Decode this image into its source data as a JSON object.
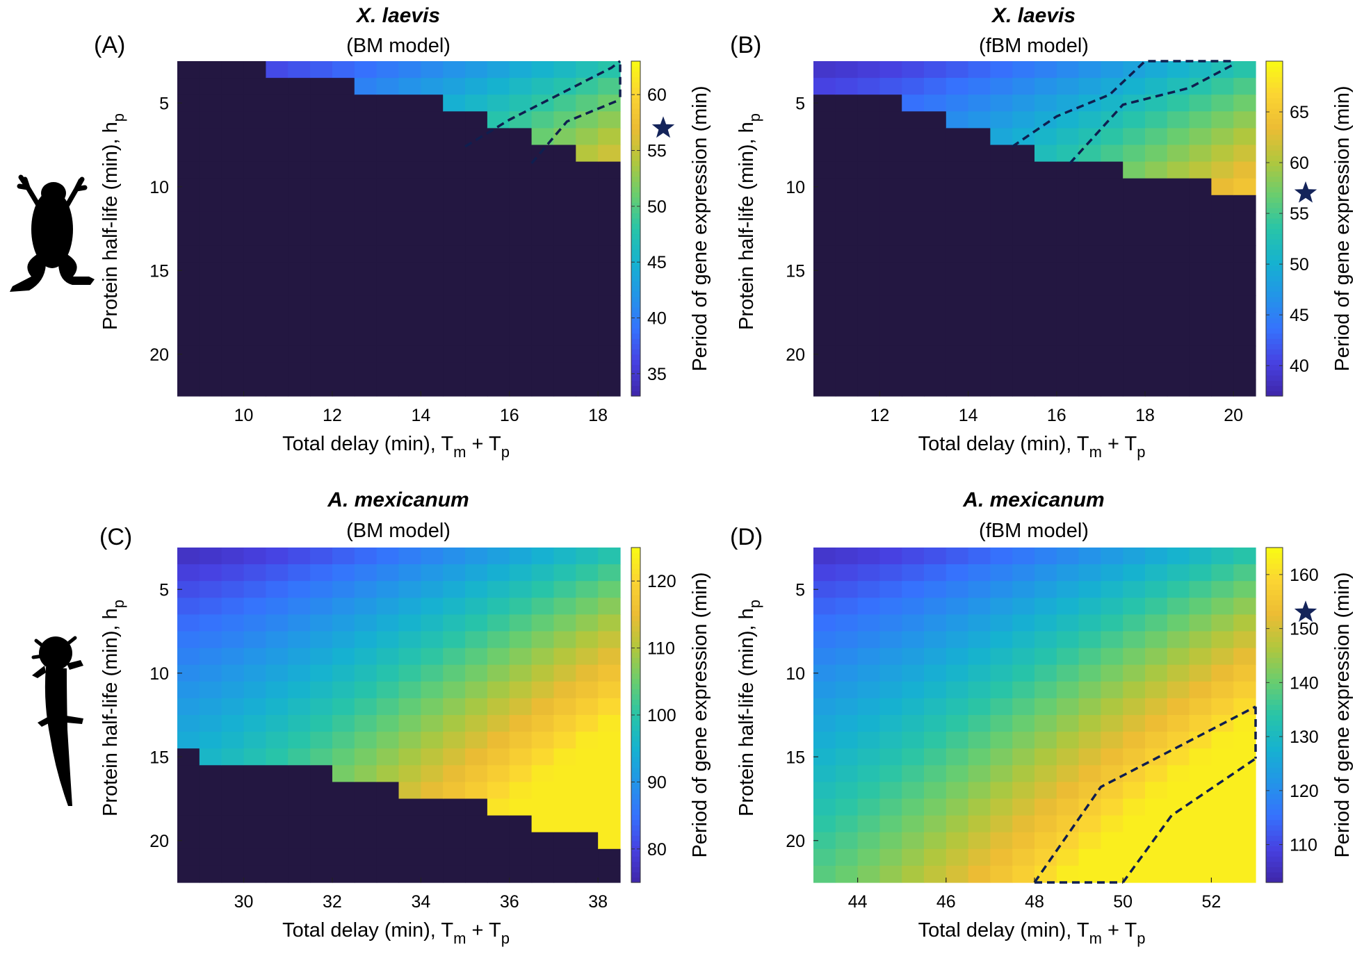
{
  "figure": {
    "xlabel_main": "Total delay (min), T",
    "xlabel_sub1": "m",
    "xlabel_plus": " + T",
    "xlabel_sub2": "p",
    "ylabel_main": "Protein half-life (min), h",
    "ylabel_sub": "p",
    "colorbar_label": "Period of gene expression (min)",
    "colors": {
      "no_oscillation": "#231741",
      "contour": "#0f1e4f",
      "star": "#14245a",
      "silhouette": "#000000"
    },
    "colormap": "parula",
    "icons": [
      "frog-silhouette-icon",
      "axolotl-silhouette-icon",
      "star-icon"
    ]
  },
  "chart_data": [
    {
      "type": "heatmap",
      "panel_label": "(A)",
      "title": "X. laevis",
      "subtitle": "(BM model)",
      "x_range": [
        8.5,
        18.5
      ],
      "y_range": [
        2.5,
        22.5
      ],
      "xticks": [
        10,
        12,
        14,
        16,
        18
      ],
      "yticks": [
        5,
        10,
        15,
        20
      ],
      "region_boundary": [
        [
          8.5,
          2.5
        ],
        [
          10.5,
          3.5
        ],
        [
          12.5,
          4.5
        ],
        [
          14.5,
          5.5
        ],
        [
          15.5,
          6.5
        ],
        [
          16.5,
          7.5
        ],
        [
          17.5,
          8.5
        ],
        [
          18.5,
          9.5
        ]
      ],
      "period_low": 34,
      "period_high": 62,
      "clim": [
        33,
        63
      ],
      "cbar_ticks": [
        35,
        40,
        45,
        50,
        55,
        60
      ],
      "star_value": 57,
      "contours": [
        [
          [
            15,
            7.6
          ],
          [
            16,
            6
          ],
          [
            18.3,
            2.9
          ],
          [
            18.5,
            2.5
          ]
        ],
        [
          [
            16.5,
            8.6
          ],
          [
            17.3,
            6.1
          ],
          [
            18.5,
            4.8
          ]
        ],
        [
          [
            18.5,
            2.7
          ],
          [
            18.5,
            4.9
          ]
        ]
      ]
    },
    {
      "type": "heatmap",
      "panel_label": "(B)",
      "title": "X. laevis",
      "subtitle": "(fBM model)",
      "x_range": [
        10.5,
        20.5
      ],
      "y_range": [
        2.5,
        22.5
      ],
      "xticks": [
        12,
        14,
        16,
        18,
        20
      ],
      "yticks": [
        5,
        10,
        15,
        20
      ],
      "region_boundary": [
        [
          10.5,
          4.5
        ],
        [
          11.5,
          4.5
        ],
        [
          12.5,
          5.5
        ],
        [
          13.5,
          6.5
        ],
        [
          14.5,
          7.5
        ],
        [
          15.5,
          8.5
        ],
        [
          16.5,
          8.5
        ],
        [
          17.5,
          9.5
        ],
        [
          19.5,
          10.5
        ],
        [
          20.5,
          10.5
        ]
      ],
      "period_low": 38,
      "period_high": 69,
      "clim": [
        37,
        70
      ],
      "cbar_ticks": [
        40,
        45,
        50,
        55,
        60,
        65
      ],
      "star_value": 57,
      "contours": [
        [
          [
            15,
            7.6
          ],
          [
            16,
            5.8
          ],
          [
            17.2,
            4.5
          ],
          [
            18,
            2.5
          ],
          [
            20,
            2.5
          ]
        ],
        [
          [
            16.3,
            8.6
          ],
          [
            17.5,
            5.1
          ],
          [
            19,
            4.1
          ],
          [
            20,
            2.7
          ]
        ]
      ]
    },
    {
      "type": "heatmap",
      "panel_label": "(C)",
      "title": "A. mexicanum",
      "subtitle": "(BM model)",
      "x_range": [
        28.5,
        38.5
      ],
      "y_range": [
        2.5,
        22.5
      ],
      "xticks": [
        30,
        32,
        34,
        36,
        38
      ],
      "yticks": [
        5,
        10,
        15,
        20
      ],
      "region_boundary": [
        [
          28.5,
          14.5
        ],
        [
          29,
          15.5
        ],
        [
          31,
          15.5
        ],
        [
          32,
          16.5
        ],
        [
          33.5,
          17.5
        ],
        [
          35.5,
          18.5
        ],
        [
          36.5,
          19.5
        ],
        [
          38,
          20.5
        ],
        [
          38.5,
          20.5
        ]
      ],
      "period_low": 76,
      "period_high": 123,
      "clim": [
        75,
        125
      ],
      "cbar_ticks": [
        80,
        90,
        100,
        110,
        120
      ],
      "star_value": null,
      "contours": []
    },
    {
      "type": "heatmap",
      "panel_label": "(D)",
      "title": "A. mexicanum",
      "subtitle": "(fBM model)",
      "x_range": [
        43,
        53
      ],
      "y_range": [
        2.5,
        22.5
      ],
      "xticks": [
        44,
        46,
        48,
        50,
        52
      ],
      "yticks": [
        5,
        10,
        15,
        20
      ],
      "region_boundary": [],
      "period_low": 105,
      "period_high": 163,
      "clim": [
        103,
        165
      ],
      "cbar_ticks": [
        110,
        120,
        130,
        140,
        150,
        160
      ],
      "star_value": 153,
      "contours": [
        [
          [
            48,
            22.5
          ],
          [
            49.5,
            16.8
          ],
          [
            53,
            12
          ]
        ],
        [
          [
            50,
            22.5
          ],
          [
            51.1,
            18.5
          ],
          [
            53,
            15.1
          ]
        ],
        [
          [
            48,
            22.5
          ],
          [
            50,
            22.5
          ]
        ],
        [
          [
            53,
            12
          ],
          [
            53,
            15.1
          ]
        ]
      ]
    }
  ]
}
